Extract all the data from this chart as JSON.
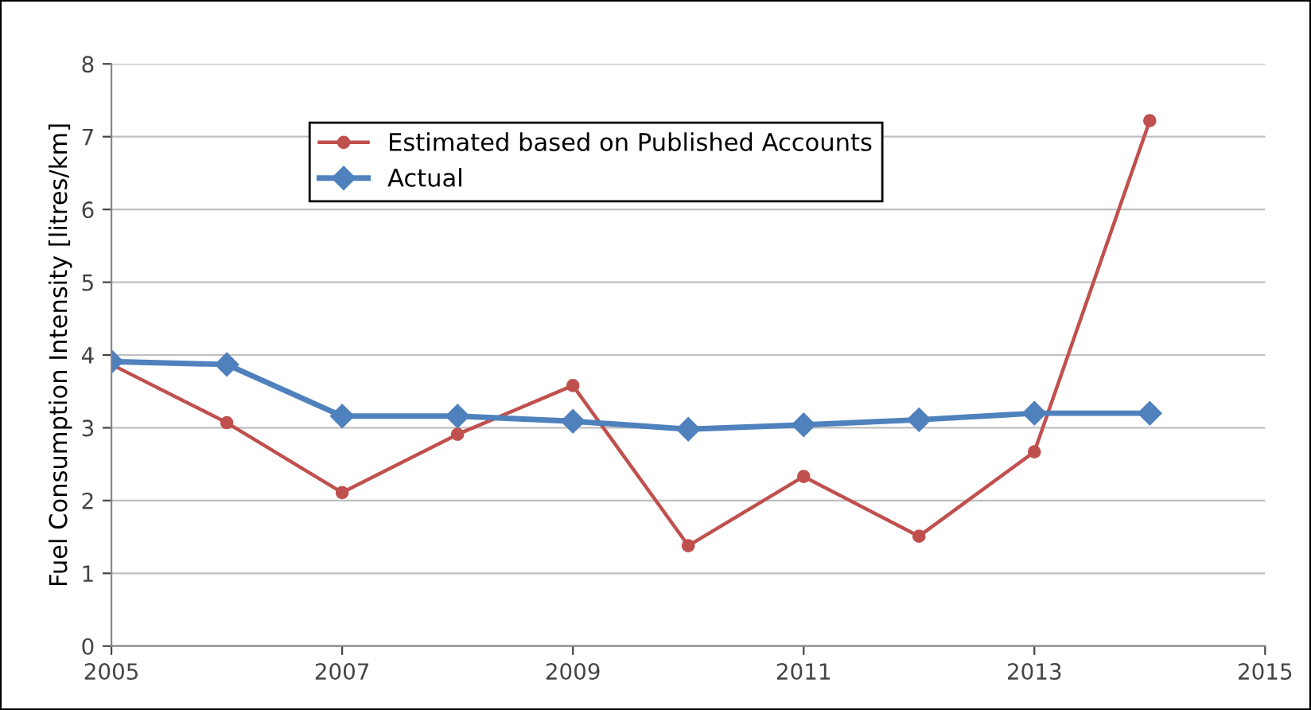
{
  "chart_data": {
    "type": "line",
    "ylabel": "Fuel Consumption Intensity [litres/km]",
    "x": [
      2005,
      2006,
      2007,
      2008,
      2009,
      2010,
      2011,
      2012,
      2013,
      2014
    ],
    "series": [
      {
        "name": "Estimated based on Published Accounts",
        "color": "#c0504d",
        "marker": "circle",
        "values": [
          3.87,
          3.07,
          2.11,
          2.91,
          3.58,
          1.38,
          2.33,
          1.51,
          2.67,
          7.22
        ]
      },
      {
        "name": "Actual",
        "color": "#4f81bd",
        "marker": "diamond",
        "values": [
          3.91,
          3.87,
          3.16,
          3.16,
          3.09,
          2.98,
          3.04,
          3.11,
          3.2,
          3.2
        ]
      }
    ],
    "xlim": [
      2005,
      2015
    ],
    "xticks": [
      2005,
      2007,
      2009,
      2011,
      2013,
      2015
    ],
    "ylim": [
      0,
      8
    ],
    "yticks": [
      0,
      1,
      2,
      3,
      4,
      5,
      6,
      7,
      8
    ],
    "grid": "y",
    "legend": "top"
  }
}
